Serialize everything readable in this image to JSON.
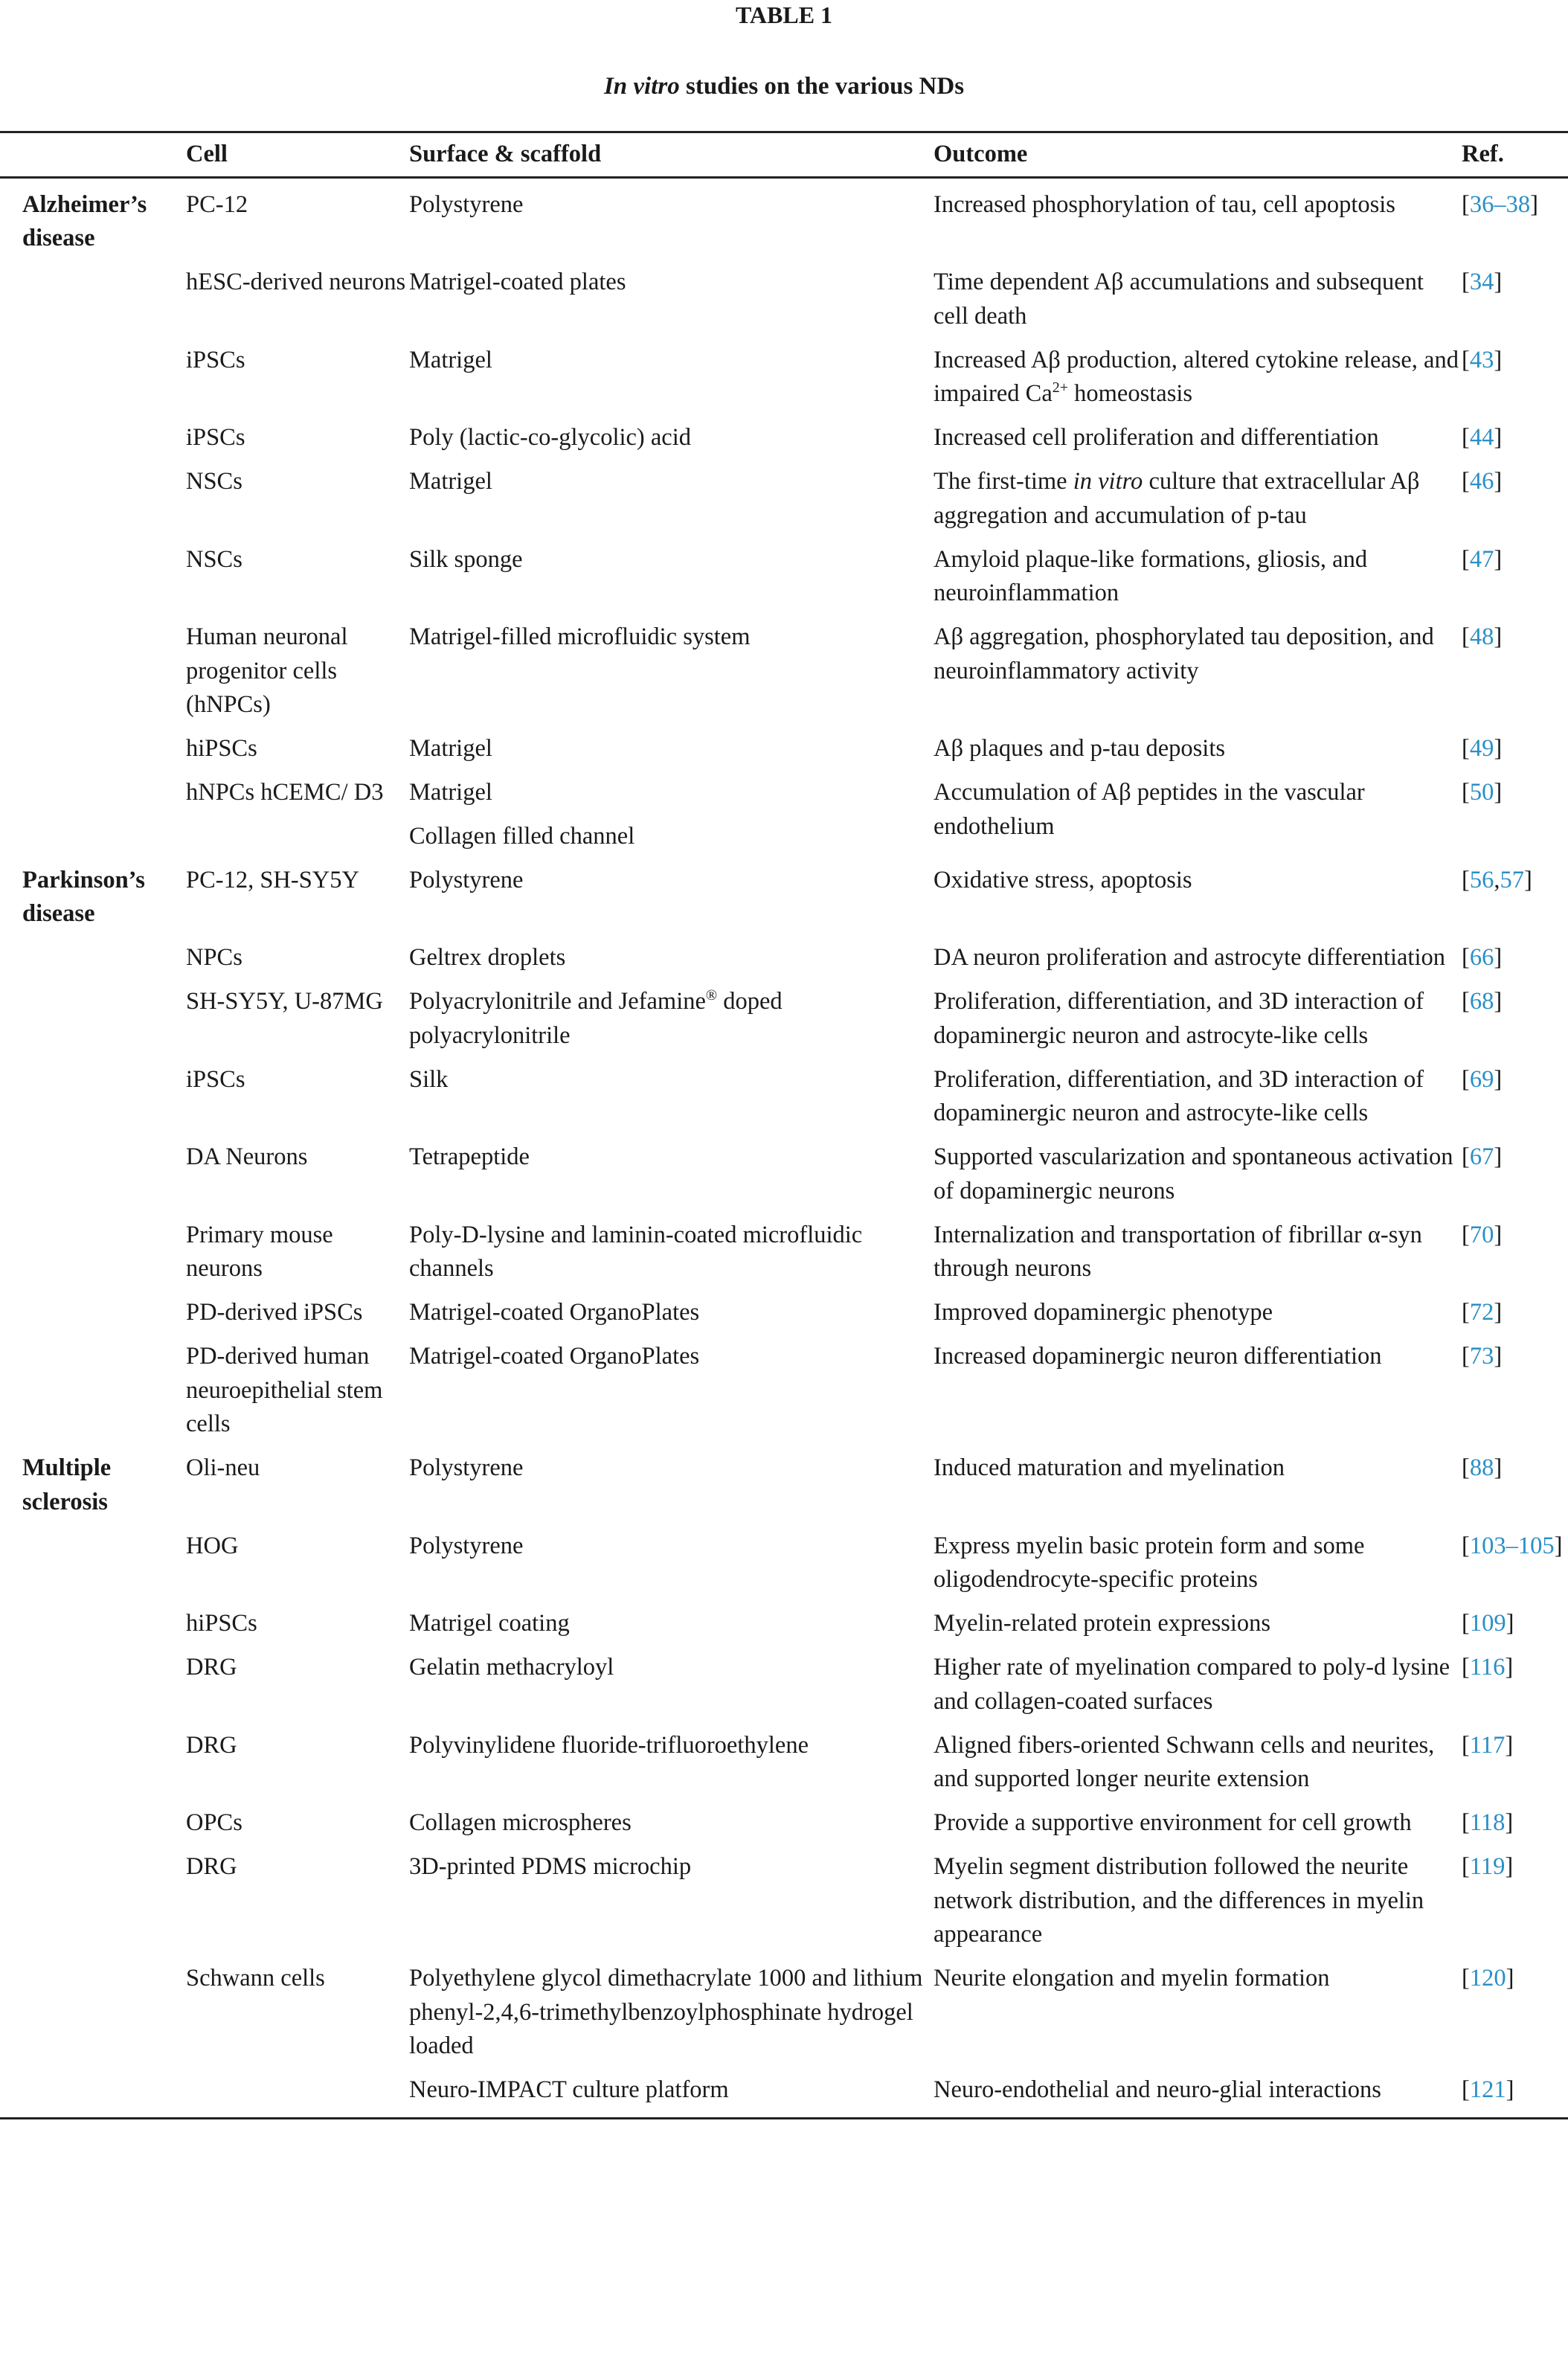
{
  "table_label": "TABLE 1",
  "caption": [
    {
      "t": "In vitro",
      "i": true
    },
    {
      "t": " studies on the various NDs"
    }
  ],
  "headers": {
    "group": "",
    "cell": "Cell",
    "surface": "Surface & scaffold",
    "outcome": "Outcome",
    "ref": "Ref."
  },
  "rows": [
    {
      "group": "Alzheimer’s disease",
      "cell": "PC-12",
      "surface": [
        "Polystyrene"
      ],
      "outcome": [
        {
          "t": "Increased phosphorylation of tau, cell apoptosis"
        }
      ],
      "ref": [
        "36–38"
      ]
    },
    {
      "group": "",
      "cell": "hESC-derived neurons",
      "surface": [
        "Matrigel-coated plates"
      ],
      "outcome": [
        {
          "t": "Time dependent Aβ accumulations and subsequent cell death"
        }
      ],
      "ref": [
        "34"
      ]
    },
    {
      "group": "",
      "cell": "iPSCs",
      "surface": [
        "Matrigel"
      ],
      "outcome": [
        {
          "t": "Increased Aβ production, altered cytokine release, and impaired Ca"
        },
        {
          "t": "2+",
          "sup": true
        },
        {
          "t": " homeostasis"
        }
      ],
      "ref": [
        "43"
      ]
    },
    {
      "group": "",
      "cell": "iPSCs",
      "surface": [
        "Poly (lactic-co-glycolic) acid"
      ],
      "outcome": [
        {
          "t": "Increased cell proliferation and differentiation"
        }
      ],
      "ref": [
        "44"
      ]
    },
    {
      "group": "",
      "cell": "NSCs",
      "surface": [
        "Matrigel"
      ],
      "outcome": [
        {
          "t": "The first-time "
        },
        {
          "t": "in vitro",
          "i": true
        },
        {
          "t": " culture that extracellular Aβ aggregation and accumulation of p-tau"
        }
      ],
      "ref": [
        "46"
      ]
    },
    {
      "group": "",
      "cell": "NSCs",
      "surface": [
        "Silk sponge"
      ],
      "outcome": [
        {
          "t": "Amyloid plaque-like formations, gliosis, and neuroinflammation"
        }
      ],
      "ref": [
        "47"
      ]
    },
    {
      "group": "",
      "cell": "Human neuronal progenitor cells (hNPCs)",
      "surface": [
        "Matrigel-filled microfluidic system"
      ],
      "outcome": [
        {
          "t": "Aβ aggregation, phosphorylated tau deposition, and neuroinflammatory activity"
        }
      ],
      "ref": [
        "48"
      ]
    },
    {
      "group": "",
      "cell": "hiPSCs",
      "surface": [
        "Matrigel"
      ],
      "outcome": [
        {
          "t": "Aβ plaques and p-tau deposits"
        }
      ],
      "ref": [
        "49"
      ]
    },
    {
      "group": "",
      "cell": "hNPCs hCEMC/ D3",
      "surface": [
        "Matrigel",
        "Collagen filled channel"
      ],
      "outcome": [
        {
          "t": "Accumulation of Aβ peptides in the vascular endothelium"
        }
      ],
      "ref": [
        "50"
      ]
    },
    {
      "group": "Parkinson’s disease",
      "cell": "PC-12, SH-SY5Y",
      "surface": [
        "Polystyrene"
      ],
      "outcome": [
        {
          "t": "Oxidative stress, apoptosis"
        }
      ],
      "ref": [
        "56",
        "57"
      ]
    },
    {
      "group": "",
      "cell": "NPCs",
      "surface": [
        "Geltrex droplets"
      ],
      "outcome": [
        {
          "t": "DA neuron proliferation and astrocyte differentiation"
        }
      ],
      "ref": [
        "66"
      ]
    },
    {
      "group": "",
      "cell": "SH-SY5Y, U-87MG",
      "surface": [
        [
          {
            "t": "Polyacrylonitrile and Jefamine"
          },
          {
            "t": "®",
            "sup": true
          },
          {
            "t": " doped polyacrylonitrile"
          }
        ]
      ],
      "outcome": [
        {
          "t": "Proliferation, differentiation, and 3D interaction of dopaminergic neuron and astrocyte-like cells"
        }
      ],
      "ref": [
        "68"
      ]
    },
    {
      "group": "",
      "cell": "iPSCs",
      "surface": [
        "Silk"
      ],
      "outcome": [
        {
          "t": "Proliferation, differentiation, and 3D interaction of dopaminergic neuron and astrocyte-like cells"
        }
      ],
      "ref": [
        "69"
      ]
    },
    {
      "group": "",
      "cell": "DA Neurons",
      "surface": [
        "Tetrapeptide"
      ],
      "outcome": [
        {
          "t": "Supported vascularization and spontaneous activation of dopaminergic neurons"
        }
      ],
      "ref": [
        "67"
      ]
    },
    {
      "group": "",
      "cell": "Primary mouse neurons",
      "surface": [
        "Poly-D-lysine and laminin-coated microfluidic channels"
      ],
      "outcome": [
        {
          "t": "Internalization and transportation of fibrillar α-syn through neurons"
        }
      ],
      "ref": [
        "70"
      ]
    },
    {
      "group": "",
      "cell": "PD-derived iPSCs",
      "surface": [
        "Matrigel-coated OrganoPlates"
      ],
      "outcome": [
        {
          "t": "Improved dopaminergic phenotype"
        }
      ],
      "ref": [
        "72"
      ]
    },
    {
      "group": "",
      "cell": "PD-derived human neuroepithelial stem cells",
      "surface": [
        "Matrigel-coated OrganoPlates"
      ],
      "outcome": [
        {
          "t": "Increased dopaminergic neuron differentiation"
        }
      ],
      "ref": [
        "73"
      ]
    },
    {
      "group": "Multiple sclerosis",
      "cell": "Oli-neu",
      "surface": [
        "Polystyrene"
      ],
      "outcome": [
        {
          "t": "Induced maturation and myelination"
        }
      ],
      "ref": [
        "88"
      ]
    },
    {
      "group": "",
      "cell": "HOG",
      "surface": [
        "Polystyrene"
      ],
      "outcome": [
        {
          "t": "Express myelin basic protein form and some oligodendrocyte-specific proteins"
        }
      ],
      "ref": [
        "103–105"
      ]
    },
    {
      "group": "",
      "cell": "hiPSCs",
      "surface": [
        "Matrigel coating"
      ],
      "outcome": [
        {
          "t": "Myelin-related protein expressions"
        }
      ],
      "ref": [
        "109"
      ]
    },
    {
      "group": "",
      "cell": "DRG",
      "surface": [
        "Gelatin methacryloyl"
      ],
      "outcome": [
        {
          "t": "Higher rate of myelination compared to poly-d lysine and collagen-coated surfaces"
        }
      ],
      "ref": [
        "116"
      ]
    },
    {
      "group": "",
      "cell": "DRG",
      "surface": [
        "Polyvinylidene fluoride-trifluoroethylene"
      ],
      "outcome": [
        {
          "t": "Aligned fibers-oriented Schwann cells and neurites, and supported longer neurite extension"
        }
      ],
      "ref": [
        "117"
      ]
    },
    {
      "group": "",
      "cell": "OPCs",
      "surface": [
        "Collagen microspheres"
      ],
      "outcome": [
        {
          "t": "Provide a supportive environment for cell growth"
        }
      ],
      "ref": [
        "118"
      ]
    },
    {
      "group": "",
      "cell": "DRG",
      "surface": [
        "3D-printed PDMS microchip"
      ],
      "outcome": [
        {
          "t": "Myelin segment distribution followed the neurite network distribution, and the differences in myelin appearance"
        }
      ],
      "ref": [
        "119"
      ]
    },
    {
      "group": "",
      "cell": "Schwann cells",
      "surface": [
        "Polyethylene glycol dimethacrylate 1000 and lithium phenyl-2,4,6-trimethylbenzoylphosphinate hydrogel loaded"
      ],
      "outcome": [
        {
          "t": "Neurite elongation and myelin formation"
        }
      ],
      "ref": [
        "120"
      ]
    },
    {
      "group": "",
      "cell": "",
      "surface": [
        "Neuro-IMPACT culture platform"
      ],
      "outcome": [
        {
          "t": "Neuro-endothelial and neuro-glial interactions"
        }
      ],
      "ref": [
        "121"
      ]
    }
  ],
  "colors": {
    "ref_link": "#2a8fc7",
    "text": "#1a1a1a",
    "rule": "#222222"
  }
}
